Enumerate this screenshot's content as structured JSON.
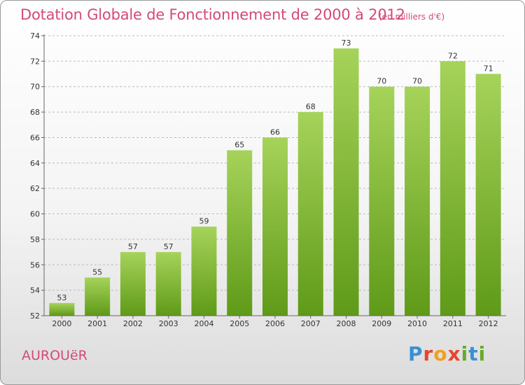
{
  "header": {
    "title": "Dotation Globale de Fonctionnement de 2000 à 2012",
    "unit": "(en milliers d'€)"
  },
  "footer": {
    "commune": "AUROUëR",
    "logo_letters": [
      "P",
      "r",
      "o",
      "x",
      "i",
      "t",
      "i"
    ],
    "logo_colors": [
      "#3a8fd6",
      "#e8452c",
      "#f0a020",
      "#e8452c",
      "#6aaa2a",
      "#3a8fd6",
      "#6aaa2a"
    ]
  },
  "colors": {
    "accent": "#d4497a",
    "bar_top": "#a6d35a",
    "bar_bottom": "#5f9a18",
    "grid": "#bbbbbb"
  },
  "chart_data": {
    "type": "bar",
    "categories": [
      "2000",
      "2001",
      "2002",
      "2003",
      "2004",
      "2005",
      "2006",
      "2007",
      "2008",
      "2009",
      "2010",
      "2011",
      "2012"
    ],
    "values": [
      53,
      55,
      57,
      57,
      59,
      65,
      66,
      68,
      73,
      70,
      70,
      72,
      71
    ],
    "value_labels": [
      "53",
      "55",
      "57",
      "57",
      "59",
      "65",
      "66",
      "68",
      "73",
      "70",
      "70",
      "72",
      "71"
    ],
    "ylim": [
      52,
      74
    ],
    "yticks": [
      "52",
      "54",
      "56",
      "58",
      "60",
      "62",
      "64",
      "66",
      "68",
      "70",
      "72",
      "74"
    ],
    "grid": true
  }
}
